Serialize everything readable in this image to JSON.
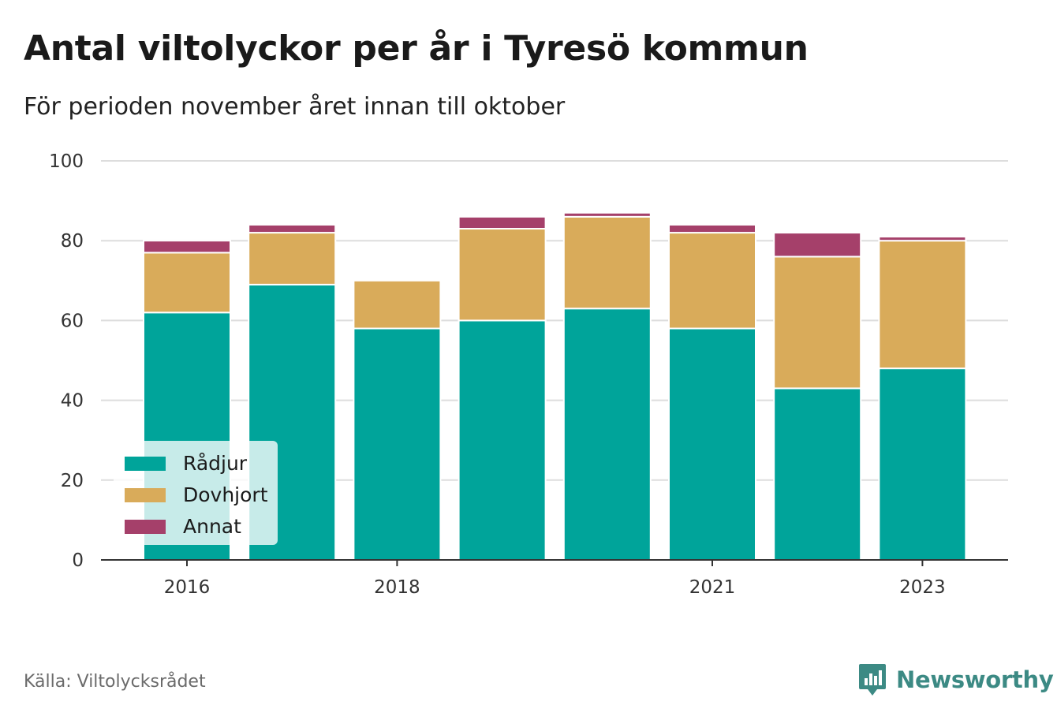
{
  "header": {
    "title": "Antal viltolyckor per år i Tyresö kommun",
    "subtitle": "För perioden november året innan till oktober"
  },
  "footer": {
    "source": "Källa: Viltolycksrådet",
    "brand": "Newsworthy",
    "brand_icon": "bar-chart-badge-icon"
  },
  "colors": {
    "radjur": "#00a49a",
    "dovhjort": "#d9ab5a",
    "annat": "#a5406a",
    "grid": "#dddddd",
    "axis": "#333333",
    "brand": "#3c8a84"
  },
  "chart_data": {
    "type": "bar",
    "stacked": true,
    "x": [
      2016,
      2017,
      2018,
      2019,
      2020,
      2021,
      2022,
      2023
    ],
    "x_tick_labels": [
      "2016",
      "2018",
      "2021",
      "2023"
    ],
    "series": [
      {
        "name": "Rådjur",
        "values": [
          62,
          69,
          58,
          60,
          63,
          58,
          43,
          48
        ],
        "color": "#00a49a"
      },
      {
        "name": "Dovhjort",
        "values": [
          15,
          13,
          12,
          23,
          23,
          24,
          33,
          32
        ],
        "color": "#d9ab5a"
      },
      {
        "name": "Annat",
        "values": [
          3,
          2,
          0,
          3,
          1,
          2,
          6,
          1
        ],
        "color": "#a5406a"
      }
    ],
    "ylim": [
      0,
      100
    ],
    "yticks": [
      0,
      20,
      40,
      60,
      80,
      100
    ],
    "grid": true,
    "legend_position": "bottom-left",
    "xlabel": "",
    "ylabel": ""
  }
}
